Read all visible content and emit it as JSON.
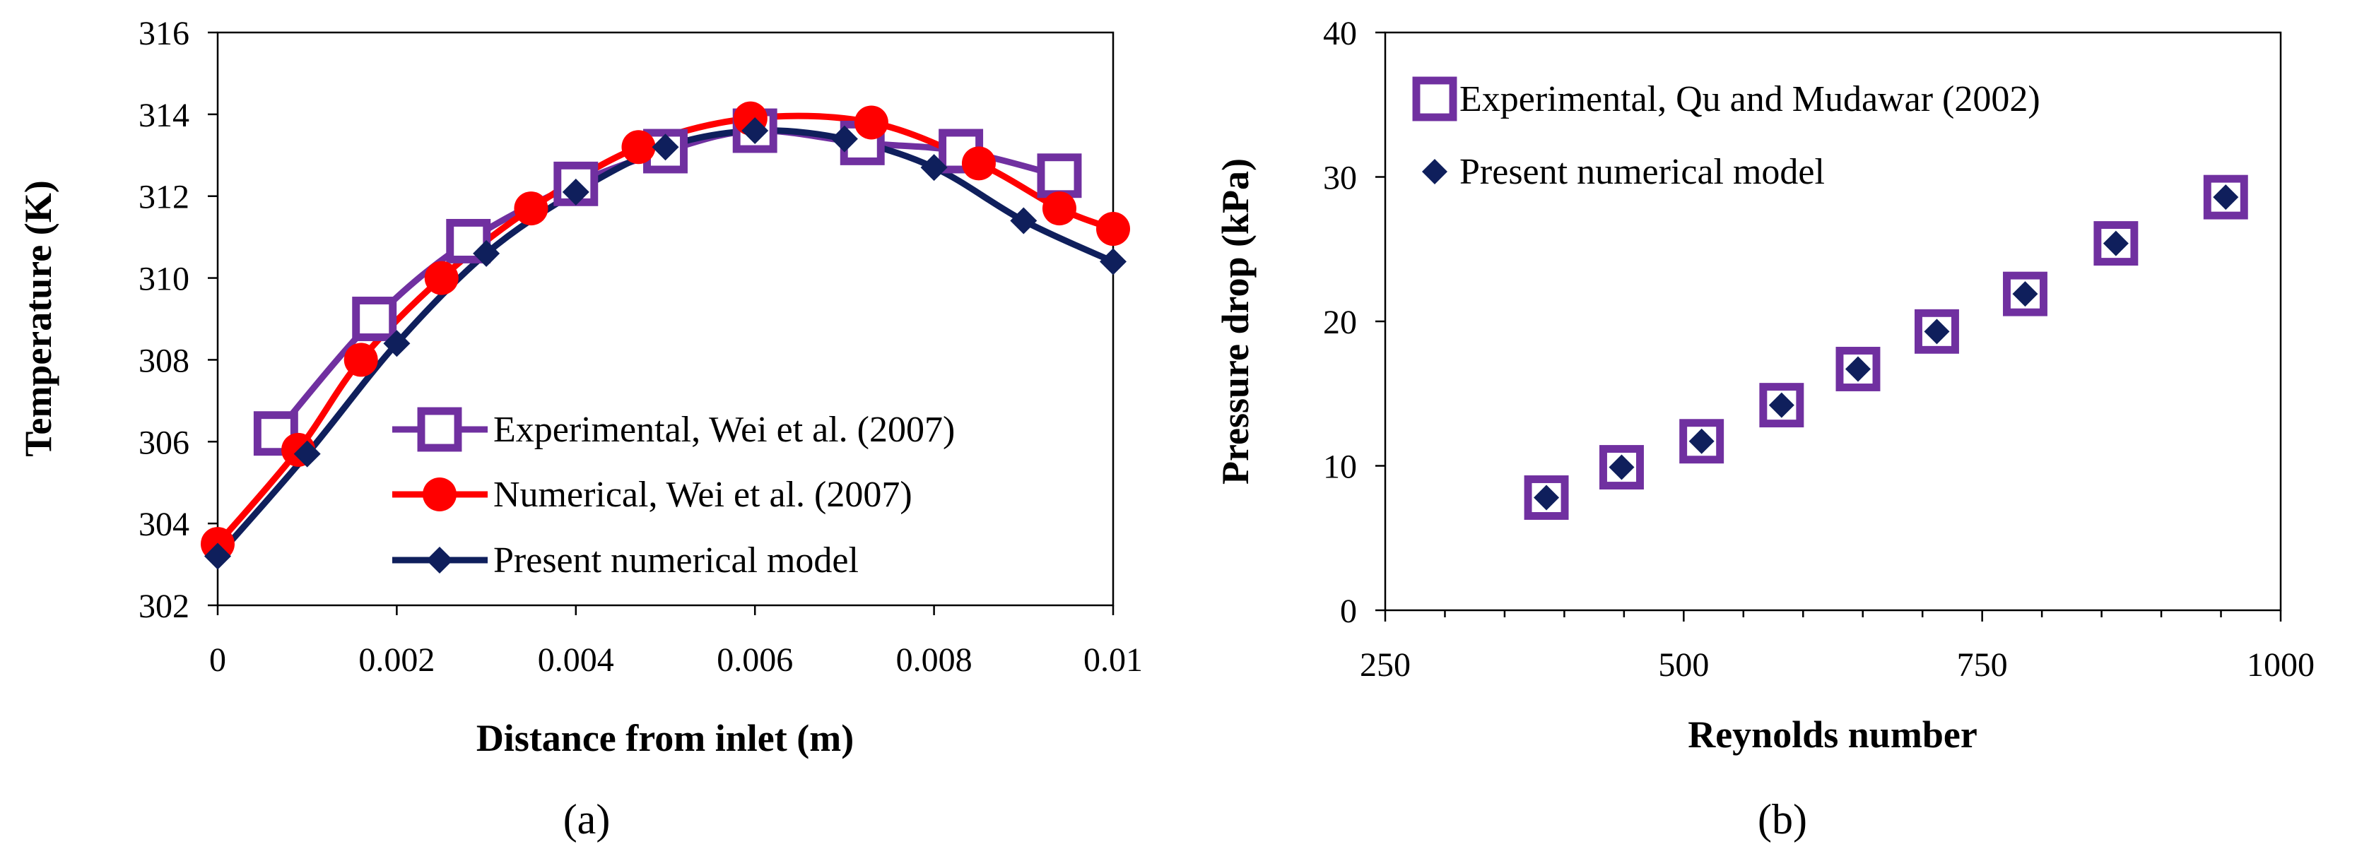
{
  "chart_data": [
    {
      "type": "line",
      "panel_label": "(a)",
      "xlabel": "Distance from inlet (m)",
      "ylabel": "Temperature (K)",
      "xlim": [
        0,
        0.01
      ],
      "ylim": [
        302,
        316
      ],
      "x_ticks": [
        "0",
        "0.002",
        "0.004",
        "0.006",
        "0.008",
        "0.01"
      ],
      "y_ticks": [
        "302",
        "304",
        "306",
        "308",
        "310",
        "312",
        "314",
        "316"
      ],
      "legend_position": "bottom-right",
      "series": [
        {
          "name": "Experimental, Wei et al. (2007)",
          "color": "#7030A0",
          "marker": "open-square",
          "x": [
            0.00065,
            0.00175,
            0.0028,
            0.004,
            0.005,
            0.006,
            0.0072,
            0.0083,
            0.0094
          ],
          "y": [
            306.2,
            309.0,
            310.9,
            312.3,
            313.1,
            313.6,
            313.3,
            313.1,
            312.5
          ]
        },
        {
          "name": "Numerical, Wei et al. (2007)",
          "color": "#FF0000",
          "marker": "filled-circle",
          "x": [
            0,
            0.0009,
            0.0016,
            0.0025,
            0.0035,
            0.0047,
            0.00595,
            0.0073,
            0.0085,
            0.0094,
            0.01
          ],
          "y": [
            303.5,
            305.8,
            308.0,
            310.0,
            311.7,
            313.2,
            313.9,
            313.8,
            312.8,
            311.7,
            311.2
          ]
        },
        {
          "name": "Present numerical model",
          "color": "#0F1F5C",
          "marker": "filled-diamond",
          "x": [
            0,
            0.001,
            0.002,
            0.003,
            0.004,
            0.005,
            0.006,
            0.007,
            0.008,
            0.009,
            0.01
          ],
          "y": [
            303.2,
            305.7,
            308.4,
            310.6,
            312.1,
            313.2,
            313.6,
            313.4,
            312.7,
            311.4,
            310.4
          ]
        }
      ]
    },
    {
      "type": "scatter",
      "panel_label": "(b)",
      "xlabel": "Reynolds number",
      "ylabel": "Pressure drop (kPa)",
      "xlim": [
        250,
        1000
      ],
      "ylim": [
        0,
        40
      ],
      "x_ticks": [
        "250",
        "500",
        "750",
        "1000"
      ],
      "y_ticks": [
        "0",
        "10",
        "20",
        "30",
        "40"
      ],
      "legend_position": "top-left",
      "series": [
        {
          "name": "Experimental, Qu and Mudawar (2002)",
          "color": "#7030A0",
          "marker": "open-square",
          "x": [
            385,
            448,
            515,
            582,
            646,
            712,
            786,
            862,
            954
          ],
          "y": [
            7.8,
            9.9,
            11.7,
            14.2,
            16.7,
            19.3,
            21.9,
            25.4,
            28.6
          ]
        },
        {
          "name": "Present numerical model",
          "color": "#0F1F5C",
          "marker": "filled-diamond",
          "x": [
            385,
            448,
            515,
            582,
            646,
            712,
            786,
            862,
            954
          ],
          "y": [
            7.8,
            9.9,
            11.7,
            14.2,
            16.7,
            19.3,
            21.9,
            25.4,
            28.6
          ]
        }
      ]
    }
  ]
}
